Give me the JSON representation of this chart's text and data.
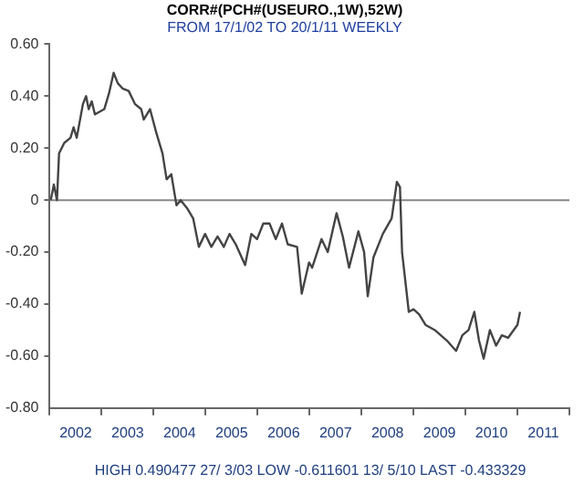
{
  "chart_data": {
    "type": "line",
    "title": "CORR#(PCH#(USEURO.,1W),52W)",
    "subtitle": "FROM 17/1/02 TO 20/1/11 WEEKLY",
    "x": [
      2002.02,
      2002.08,
      2002.14,
      2002.18,
      2002.28,
      2002.4,
      2002.46,
      2002.52,
      2002.64,
      2002.7,
      2002.75,
      2002.81,
      2002.87,
      2003.05,
      2003.14,
      2003.23,
      2003.31,
      2003.4,
      2003.52,
      2003.64,
      2003.76,
      2003.81,
      2003.93,
      2004.05,
      2004.17,
      2004.25,
      2004.34,
      2004.44,
      2004.52,
      2004.64,
      2004.76,
      2004.87,
      2004.99,
      2005.11,
      2005.23,
      2005.35,
      2005.46,
      2005.58,
      2005.76,
      2005.88,
      2005.99,
      2006.11,
      2006.23,
      2006.35,
      2006.47,
      2006.58,
      2006.76,
      2006.85,
      2006.99,
      2007.05,
      2007.23,
      2007.35,
      2007.52,
      2007.64,
      2007.76,
      2007.94,
      2008.05,
      2008.12,
      2008.23,
      2008.41,
      2008.58,
      2008.68,
      2008.74,
      2008.78,
      2008.91,
      2009.0,
      2009.11,
      2009.23,
      2009.41,
      2009.64,
      2009.82,
      2009.94,
      2010.06,
      2010.17,
      2010.26,
      2010.35,
      2010.47,
      2010.59,
      2010.7,
      2010.82,
      2011.0,
      2011.05
    ],
    "series": [
      {
        "color": "#444444",
        "values": [
          0.0,
          0.06,
          0.0,
          0.18,
          0.22,
          0.24,
          0.28,
          0.24,
          0.37,
          0.4,
          0.35,
          0.38,
          0.33,
          0.35,
          0.41,
          0.49,
          0.45,
          0.43,
          0.42,
          0.37,
          0.35,
          0.31,
          0.35,
          0.26,
          0.18,
          0.08,
          0.1,
          -0.02,
          0.0,
          -0.03,
          -0.07,
          -0.18,
          -0.13,
          -0.18,
          -0.14,
          -0.18,
          -0.13,
          -0.17,
          -0.25,
          -0.13,
          -0.15,
          -0.09,
          -0.09,
          -0.15,
          -0.09,
          -0.17,
          -0.18,
          -0.36,
          -0.24,
          -0.26,
          -0.15,
          -0.2,
          -0.05,
          -0.14,
          -0.26,
          -0.12,
          -0.2,
          -0.37,
          -0.22,
          -0.13,
          -0.07,
          0.07,
          0.05,
          -0.2,
          -0.43,
          -0.42,
          -0.44,
          -0.48,
          -0.5,
          -0.54,
          -0.58,
          -0.52,
          -0.5,
          -0.43,
          -0.54,
          -0.61,
          -0.5,
          -0.56,
          -0.52,
          -0.53,
          -0.48,
          -0.43
        ]
      }
    ],
    "xlim": [
      2002,
      2012
    ],
    "xticks": [
      {
        "value": 2002,
        "label": null
      },
      {
        "value": 2002.5,
        "label": "2002"
      },
      {
        "value": 2003,
        "label": null
      },
      {
        "value": 2003.5,
        "label": "2003"
      },
      {
        "value": 2004,
        "label": null
      },
      {
        "value": 2004.5,
        "label": "2004"
      },
      {
        "value": 2005,
        "label": null
      },
      {
        "value": 2005.5,
        "label": "2005"
      },
      {
        "value": 2006,
        "label": null
      },
      {
        "value": 2006.5,
        "label": "2006"
      },
      {
        "value": 2007,
        "label": null
      },
      {
        "value": 2007.5,
        "label": "2007"
      },
      {
        "value": 2008,
        "label": null
      },
      {
        "value": 2008.5,
        "label": "2008"
      },
      {
        "value": 2009,
        "label": null
      },
      {
        "value": 2009.5,
        "label": "2009"
      },
      {
        "value": 2010,
        "label": null
      },
      {
        "value": 2010.5,
        "label": "2010"
      },
      {
        "value": 2011,
        "label": null
      },
      {
        "value": 2011.5,
        "label": "2011"
      },
      {
        "value": 2012,
        "label": null
      }
    ],
    "ylim": [
      -0.8,
      0.6
    ],
    "yticks": [
      {
        "value": -0.8,
        "label": "-0.80"
      },
      {
        "value": -0.6,
        "label": "-0.60"
      },
      {
        "value": -0.4,
        "label": "-0.40"
      },
      {
        "value": -0.2,
        "label": "-0.20"
      },
      {
        "value": 0,
        "label": "0"
      },
      {
        "value": 0.2,
        "label": "0.20"
      },
      {
        "value": 0.4,
        "label": "0.40"
      },
      {
        "value": 0.6,
        "label": "0.60"
      }
    ],
    "ref_lines": [
      {
        "axis": "y",
        "value": 0,
        "color": "#888888"
      }
    ],
    "annotations": [
      "HIGH 0.490477 27/ 3/03 LOW -0.611601 13/ 5/10 LAST -0.433329"
    ],
    "grid": false,
    "legend": false,
    "marker": "none",
    "line_style": "solid"
  }
}
